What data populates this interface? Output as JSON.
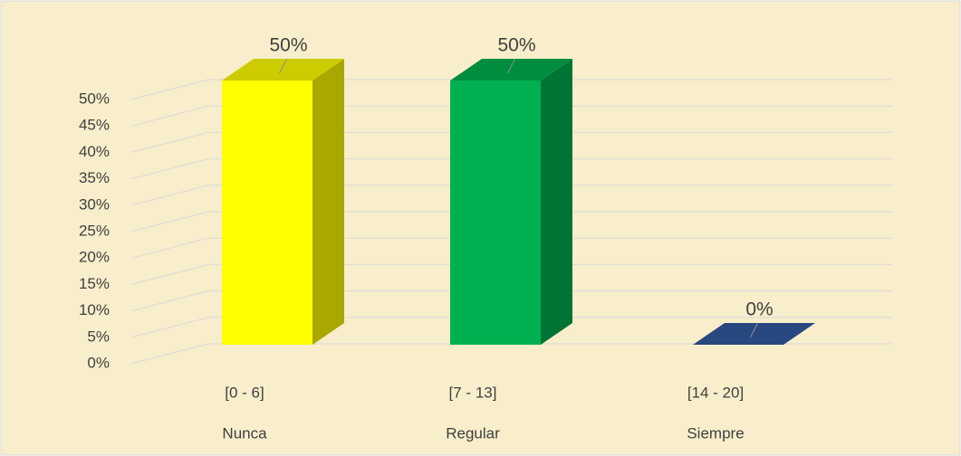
{
  "chart_data": {
    "type": "bar3d",
    "categories": [
      "[0 - 6]",
      "[7 - 13]",
      "[14 - 20]"
    ],
    "groups": [
      "Nunca",
      "Regular",
      "Siempre"
    ],
    "values": [
      50,
      50,
      0
    ],
    "value_labels": [
      "50%",
      "50%",
      "0%"
    ],
    "colors": [
      "#ffff00",
      "#00b050",
      "#2f5597"
    ],
    "ylim": [
      0,
      50
    ],
    "yticks": [
      {
        "value": 0,
        "label": "0%"
      },
      {
        "value": 5,
        "label": "5%"
      },
      {
        "value": 10,
        "label": "10%"
      },
      {
        "value": 15,
        "label": "15%"
      },
      {
        "value": 20,
        "label": "20%"
      },
      {
        "value": 25,
        "label": "25%"
      },
      {
        "value": 30,
        "label": "30%"
      },
      {
        "value": 35,
        "label": "35%"
      },
      {
        "value": 40,
        "label": "40%"
      },
      {
        "value": 45,
        "label": "45%"
      },
      {
        "value": 50,
        "label": "50%"
      }
    ],
    "grid": true
  }
}
